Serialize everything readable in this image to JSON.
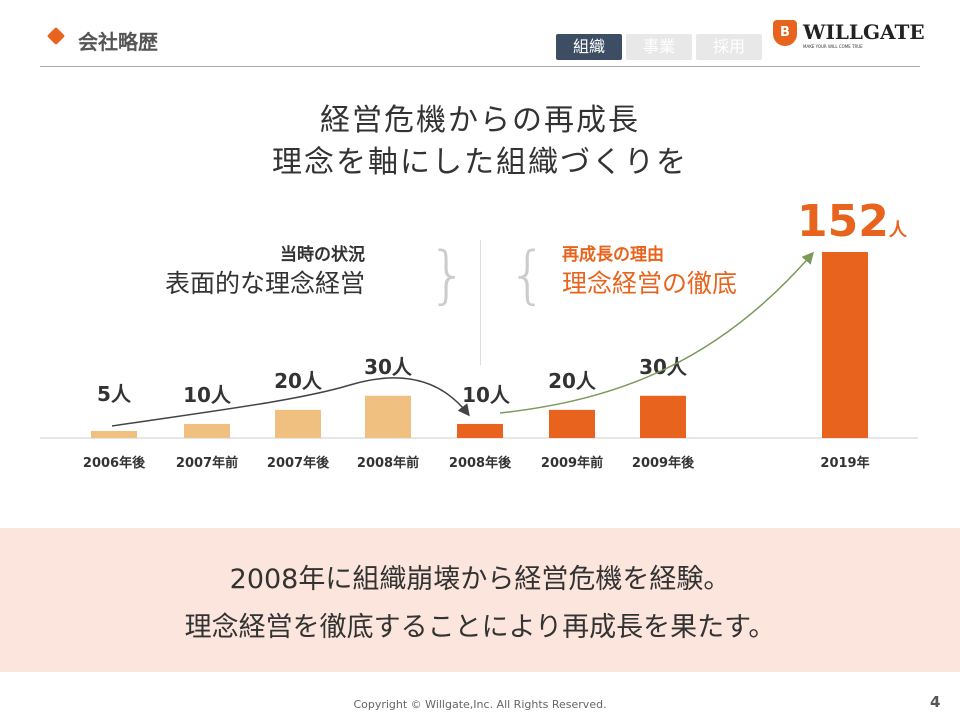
{
  "header": {
    "title": "会社略歴",
    "tabs": [
      {
        "label": "組織",
        "active": true
      },
      {
        "label": "事業",
        "active": false
      },
      {
        "label": "採用",
        "active": false
      }
    ],
    "logo": {
      "mark": "B",
      "name": "WILLGATE",
      "tagline": "MAKE YOUR WILL COME TRUE"
    }
  },
  "headline": [
    "経営危機からの再成長",
    "理念を軸にした組織づくりを"
  ],
  "left_note": {
    "title": "当時の状況",
    "body": "表面的な理念経営"
  },
  "right_note": {
    "title": "再成長の理由",
    "body": "理念経営の徹底"
  },
  "chart_data": {
    "type": "bar",
    "categories": [
      "2006年後",
      "2007年前",
      "2007年後",
      "2008年前",
      "2008年後",
      "2009年前",
      "2009年後",
      "2019年"
    ],
    "values": [
      5,
      10,
      20,
      30,
      10,
      20,
      30,
      152
    ],
    "unit": "人",
    "data_labels": [
      "5人",
      "10人",
      "20人",
      "30人",
      "10人",
      "20人",
      "30人",
      "152"
    ],
    "colors": [
      "#f0c080",
      "#f0c080",
      "#f0c080",
      "#f0c080",
      "#e8641e",
      "#e8641e",
      "#e8641e",
      "#e8641e"
    ],
    "ylim": [
      0,
      152
    ]
  },
  "banner": [
    "2008年に組織崩壊から経営危機を経験。",
    "理念経営を徹底することにより再成長を果たす。"
  ],
  "footer": {
    "copyright": "Copyright ©  Willgate,Inc. All Rights Reserved.",
    "page": "4"
  }
}
